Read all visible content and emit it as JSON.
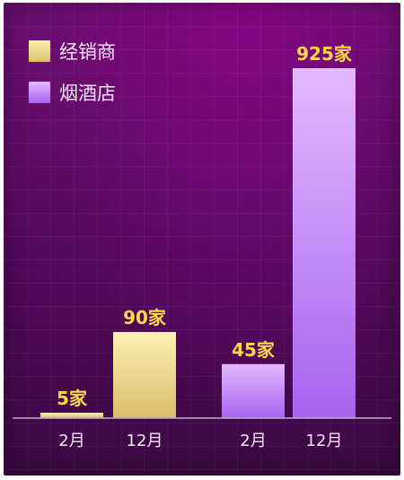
{
  "chart_data": {
    "type": "bar",
    "series": [
      {
        "name": "经销商",
        "color_top": "#fff2b3",
        "color_bottom": "#d9bd6a",
        "points": [
          {
            "x": "2月",
            "value": 5,
            "label": "5家"
          },
          {
            "x": "12月",
            "value": 90,
            "label": "90家"
          }
        ]
      },
      {
        "name": "烟酒店",
        "color_top": "#e3b9ff",
        "color_bottom": "#a862ef",
        "points": [
          {
            "x": "2月",
            "value": 45,
            "label": "45家"
          },
          {
            "x": "12月",
            "value": 925,
            "label": "925家"
          }
        ]
      }
    ],
    "grid": true,
    "legend_position": "top-left",
    "axis_scale_note": "bars not drawn to a common linear scale"
  },
  "colors": {
    "value_label": "#ffd84a",
    "text": "#f3e7f5",
    "axis_line": "#c9a8cf"
  }
}
